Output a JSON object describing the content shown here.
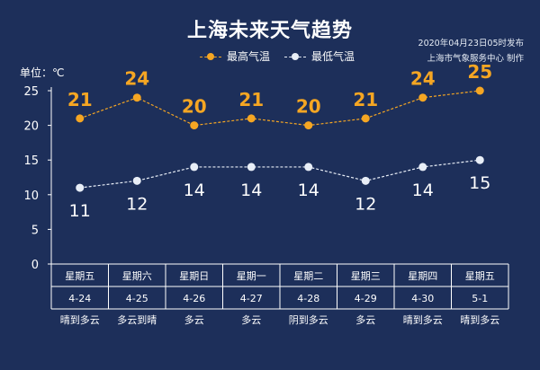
{
  "header": {
    "title": "上海未来天气趋势",
    "publish_line1": "2020年04月23日05时发布",
    "publish_line2": "上海市气象服务中心  制作",
    "unit_label": "单位：℃"
  },
  "colors": {
    "background": "#1d2f5a",
    "high": "#f5a623",
    "low": "#e8eef7",
    "axis": "#ffffff"
  },
  "chart_data": {
    "type": "line",
    "categories": [
      "4-24",
      "4-25",
      "4-26",
      "4-27",
      "4-28",
      "4-29",
      "4-30",
      "5-1"
    ],
    "weekdays": [
      "星期五",
      "星期六",
      "星期日",
      "星期一",
      "星期二",
      "星期三",
      "星期四",
      "星期五"
    ],
    "conditions": [
      "晴到多云",
      "多云到晴",
      "多云",
      "多云",
      "阴到多云",
      "多云",
      "晴到多云",
      "晴到多云"
    ],
    "series": [
      {
        "name": "最高气温",
        "values": [
          21,
          24,
          20,
          21,
          20,
          21,
          24,
          25
        ]
      },
      {
        "name": "最低气温",
        "values": [
          11,
          12,
          14,
          14,
          14,
          12,
          14,
          15
        ]
      }
    ],
    "yticks": [
      0,
      5,
      10,
      15,
      20,
      25
    ],
    "ylim": [
      0,
      25
    ],
    "legend_position": "top-center",
    "grid": false
  }
}
